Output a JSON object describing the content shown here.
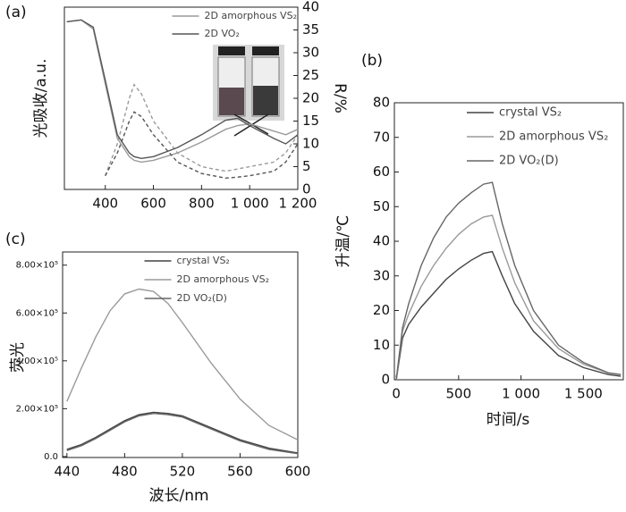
{
  "chart_data": [
    {
      "type": "line",
      "label": "(a)",
      "ylabel": "光吸收/a.u.",
      "y2label": "R/%",
      "x": [
        240,
        300,
        350,
        400,
        450,
        500,
        520,
        550,
        600,
        700,
        800,
        900,
        950,
        1000,
        1100,
        1150,
        1200
      ],
      "xlim": [
        230,
        1200
      ],
      "xticks": [
        400,
        600,
        800,
        {
          "value": 1000,
          "label": "1 000"
        },
        {
          "value": 1200,
          "label": "1 200"
        }
      ],
      "ylim": [
        0,
        1
      ],
      "y2lim": [
        0,
        40
      ],
      "y2ticks": [
        0,
        5,
        10,
        15,
        20,
        25,
        30,
        35,
        40
      ],
      "legend": "upper-center",
      "series": [
        {
          "name": "2D amorphous VS₂",
          "color": "#9a9a9a",
          "values": [
            0.92,
            0.93,
            0.88,
            0.58,
            0.28,
            0.18,
            0.16,
            0.15,
            0.16,
            0.2,
            0.26,
            0.33,
            0.35,
            0.36,
            0.32,
            0.3,
            0.33
          ],
          "r_values": [
            null,
            null,
            null,
            3,
            10,
            20,
            23,
            21,
            15,
            8,
            5,
            4,
            4.5,
            5,
            6,
            8,
            12
          ]
        },
        {
          "name": "2D VO₂",
          "color": "#555555",
          "values": [
            0.92,
            0.93,
            0.89,
            0.6,
            0.3,
            0.2,
            0.18,
            0.17,
            0.18,
            0.23,
            0.3,
            0.38,
            0.39,
            0.35,
            0.28,
            0.25,
            0.3
          ],
          "r_values": [
            null,
            null,
            null,
            3,
            8,
            15,
            17,
            16,
            12,
            6,
            3.5,
            2.5,
            2.7,
            3,
            4,
            6,
            10
          ]
        }
      ]
    },
    {
      "type": "line",
      "label": "(b)",
      "ylabel": "升温/℃",
      "xlabel": "时间/s",
      "x": [
        0,
        50,
        100,
        200,
        300,
        400,
        500,
        600,
        700,
        770,
        850,
        950,
        1100,
        1300,
        1500,
        1700,
        1800
      ],
      "xlim": [
        -15,
        1820
      ],
      "xticks": [
        0,
        500,
        {
          "value": 1000,
          "label": "1 000"
        },
        {
          "value": 1500,
          "label": "1 500"
        }
      ],
      "ylim": [
        0,
        80
      ],
      "yticks": [
        0,
        10,
        20,
        30,
        40,
        50,
        60,
        70,
        80
      ],
      "legend": "upper-right",
      "series": [
        {
          "name": "crystal VS₂",
          "color": "#444444",
          "values": [
            0,
            12,
            16,
            21,
            25,
            29,
            32,
            34.5,
            36.5,
            37,
            30,
            22,
            14,
            7,
            3.5,
            1.5,
            1
          ]
        },
        {
          "name": "2D amorphous VS₂",
          "color": "#9a9a9a",
          "values": [
            0,
            14,
            19,
            27,
            33,
            38,
            42,
            45,
            47,
            47.5,
            38,
            28,
            17,
            9,
            4.5,
            2,
            1.5
          ]
        },
        {
          "name": "2D VO₂(D)",
          "color": "#666666",
          "values": [
            0,
            15,
            22,
            33,
            41,
            47,
            51,
            54,
            56.5,
            57,
            45,
            33,
            20,
            10,
            5,
            2,
            1.5
          ]
        }
      ]
    },
    {
      "type": "line",
      "label": "(c)",
      "ylabel": "荧光",
      "xlabel": "波长/nm",
      "x": [
        440,
        450,
        460,
        470,
        480,
        490,
        500,
        510,
        520,
        540,
        560,
        580,
        600
      ],
      "xlim": [
        437,
        600
      ],
      "xticks": [
        440,
        480,
        520,
        560,
        600
      ],
      "ylim": [
        -4000,
        855000
      ],
      "yticks": [
        {
          "value": 0,
          "label": "0.0"
        },
        {
          "value": 200000,
          "label": "2.00×10⁵"
        },
        {
          "value": 400000,
          "label": "4.00×10⁵"
        },
        {
          "value": 600000,
          "label": "6.00×10⁵"
        },
        {
          "value": 800000,
          "label": "8.00×10⁵"
        }
      ],
      "legend": "upper-center",
      "series": [
        {
          "name": "crystal VS₂",
          "color": "#444444",
          "values": [
            30000,
            50000,
            80000,
            115000,
            150000,
            175000,
            185000,
            180000,
            170000,
            120000,
            70000,
            35000,
            15000
          ]
        },
        {
          "name": "2D amorphous VS₂",
          "color": "#9a9a9a",
          "values": [
            230000,
            370000,
            500000,
            610000,
            680000,
            700000,
            690000,
            640000,
            560000,
            390000,
            240000,
            130000,
            70000
          ]
        },
        {
          "name": "2D VO₂(D)",
          "color": "#666666",
          "values": [
            25000,
            45000,
            75000,
            110000,
            145000,
            170000,
            180000,
            175000,
            165000,
            115000,
            65000,
            30000,
            12000
          ]
        }
      ]
    }
  ]
}
